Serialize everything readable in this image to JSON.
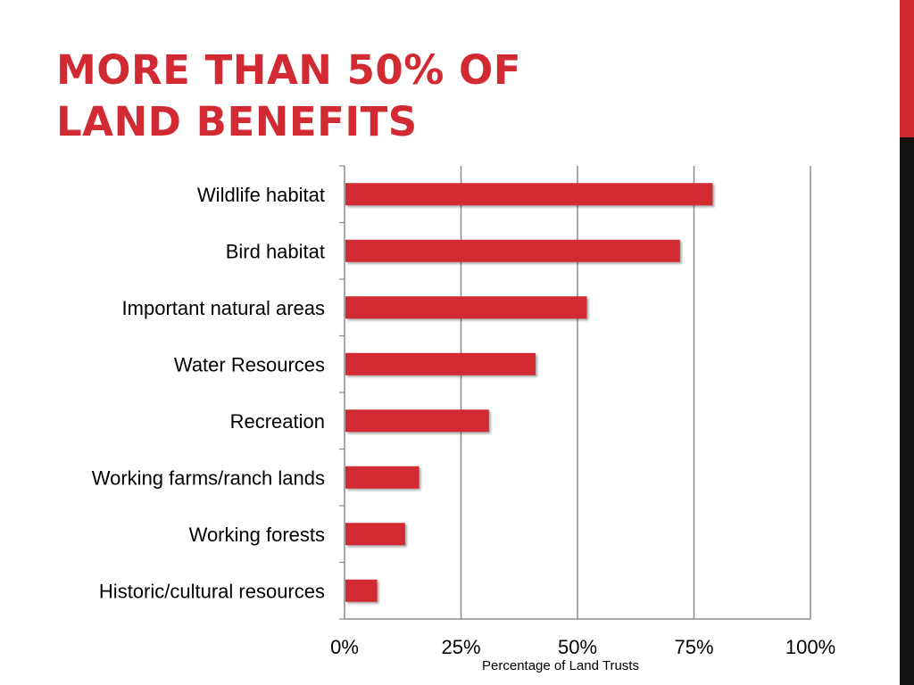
{
  "slide": {
    "title_line1": "MORE THAN 50% OF",
    "title_line2": "LAND BENEFITS"
  },
  "colors": {
    "accent": "#d22a33",
    "bar": "#d22a33",
    "side_bar_top": "#d0282f",
    "side_bar_bottom": "#111111",
    "gridline": "#8c8c8c"
  },
  "chart_data": {
    "type": "bar",
    "orientation": "horizontal",
    "categories": [
      "Wildlife habitat",
      "Bird habitat",
      "Important natural areas",
      "Water Resources",
      "Recreation",
      "Working farms/ranch lands",
      "Working forests",
      "Historic/cultural resources"
    ],
    "values": [
      79,
      72,
      52,
      41,
      31,
      16,
      13,
      7
    ],
    "xlim": [
      0,
      100
    ],
    "xticks": [
      0,
      25,
      50,
      75,
      100
    ],
    "xtick_labels": [
      "0%",
      "25%",
      "50%",
      "75%",
      "100%"
    ],
    "xlabel": "Percentage of Land Trusts",
    "ylabel": "",
    "grid": "vertical",
    "legend": "none"
  }
}
